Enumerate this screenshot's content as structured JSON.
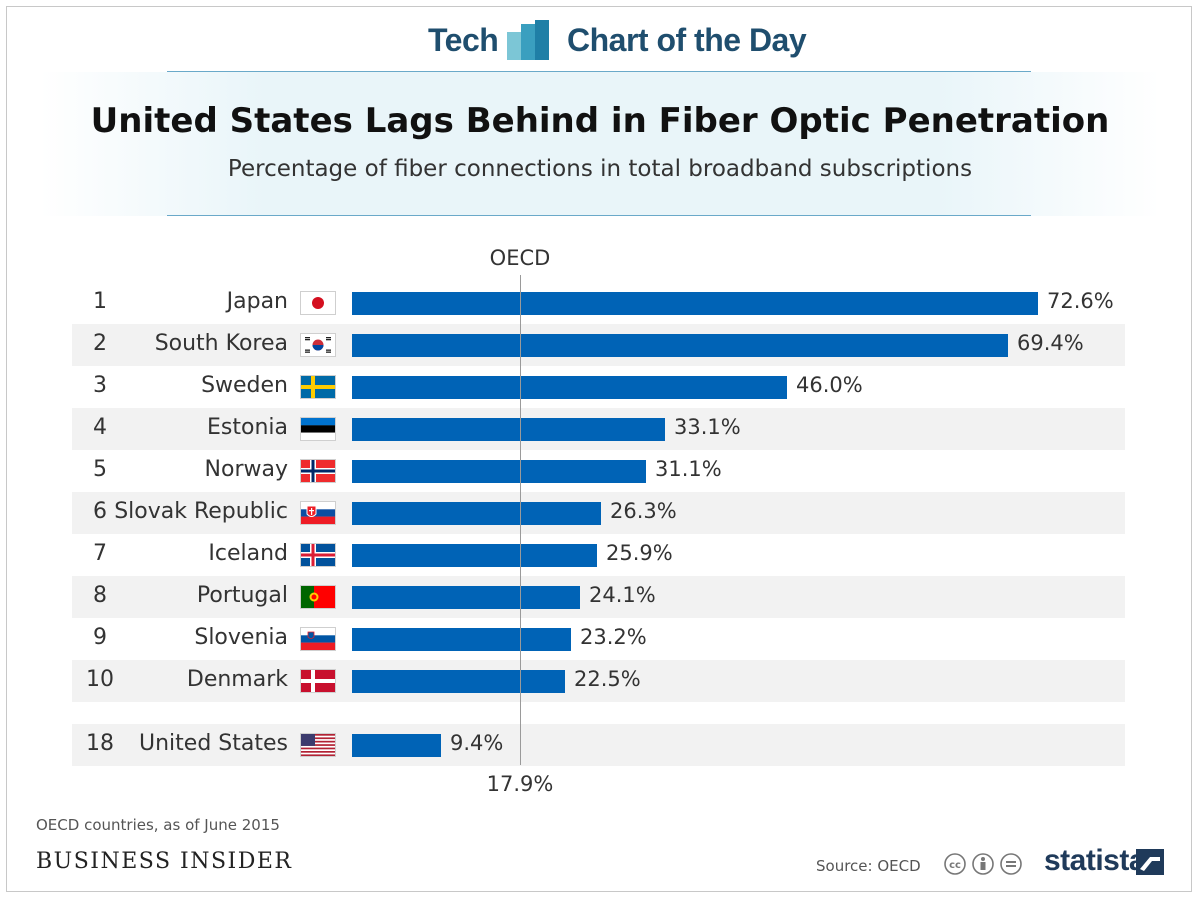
{
  "header": {
    "left_word": "Tech",
    "right_word": "Chart of the Day",
    "logo_icon": "bar-cluster-icon"
  },
  "chart_data": {
    "type": "bar",
    "orientation": "horizontal",
    "title": "United States Lags Behind in Fiber Optic Penetration",
    "subtitle": "Percentage of fiber connections in total broadband subscriptions",
    "value_suffix": "%",
    "xlim": [
      0,
      72.6
    ],
    "reference": {
      "label": "OECD",
      "value": 17.9,
      "value_label": "17.9%"
    },
    "rows": [
      {
        "rank": "1",
        "country": "Japan",
        "value": 72.6,
        "value_label": "72.6%",
        "flag_icon": "flag-japan-icon"
      },
      {
        "rank": "2",
        "country": "South Korea",
        "value": 69.4,
        "value_label": "69.4%",
        "flag_icon": "flag-south-korea-icon"
      },
      {
        "rank": "3",
        "country": "Sweden",
        "value": 46.0,
        "value_label": "46.0%",
        "flag_icon": "flag-sweden-icon"
      },
      {
        "rank": "4",
        "country": "Estonia",
        "value": 33.1,
        "value_label": "33.1%",
        "flag_icon": "flag-estonia-icon"
      },
      {
        "rank": "5",
        "country": "Norway",
        "value": 31.1,
        "value_label": "31.1%",
        "flag_icon": "flag-norway-icon"
      },
      {
        "rank": "6",
        "country": "Slovak Republic",
        "value": 26.3,
        "value_label": "26.3%",
        "flag_icon": "flag-slovakia-icon"
      },
      {
        "rank": "7",
        "country": "Iceland",
        "value": 25.9,
        "value_label": "25.9%",
        "flag_icon": "flag-iceland-icon"
      },
      {
        "rank": "8",
        "country": "Portugal",
        "value": 24.1,
        "value_label": "24.1%",
        "flag_icon": "flag-portugal-icon"
      },
      {
        "rank": "9",
        "country": "Slovenia",
        "value": 23.2,
        "value_label": "23.2%",
        "flag_icon": "flag-slovenia-icon"
      },
      {
        "rank": "10",
        "country": "Denmark",
        "value": 22.5,
        "value_label": "22.5%",
        "flag_icon": "flag-denmark-icon"
      },
      {
        "rank": "18",
        "country": "United States",
        "value": 9.4,
        "value_label": "9.4%",
        "flag_icon": "flag-united-states-icon"
      }
    ]
  },
  "footer": {
    "footnote": "OECD countries, as of June 2015",
    "publisher": "BUSINESS INSIDER",
    "source": "Source: OECD",
    "license_icon": "creative-commons-icon",
    "brand": "statista",
    "brand_icon": "statista-logo-icon"
  },
  "colors": {
    "bar": "#0063b6",
    "header_text": "#1f4e6e",
    "rule": "#6aa9c9",
    "row_stripe": "#f2f2f2"
  }
}
